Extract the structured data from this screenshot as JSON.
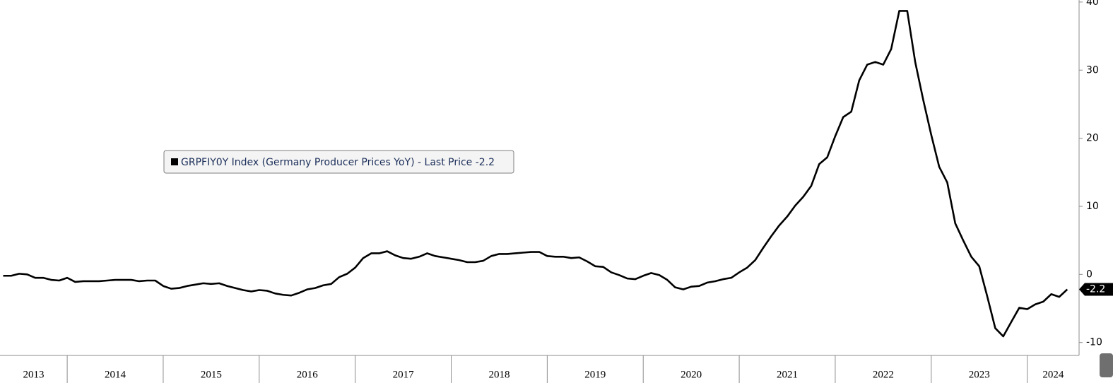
{
  "chart_data": {
    "type": "line",
    "x": [
      2013.333,
      2013.417,
      2013.5,
      2013.583,
      2013.667,
      2013.75,
      2013.833,
      2013.917,
      2014,
      2014.083,
      2014.167,
      2014.25,
      2014.333,
      2014.417,
      2014.5,
      2014.583,
      2014.667,
      2014.75,
      2014.833,
      2014.917,
      2015,
      2015.083,
      2015.167,
      2015.25,
      2015.333,
      2015.417,
      2015.5,
      2015.583,
      2015.667,
      2015.75,
      2015.833,
      2015.917,
      2016,
      2016.083,
      2016.167,
      2016.25,
      2016.333,
      2016.417,
      2016.5,
      2016.583,
      2016.667,
      2016.75,
      2016.833,
      2016.917,
      2017,
      2017.083,
      2017.167,
      2017.25,
      2017.333,
      2017.417,
      2017.5,
      2017.583,
      2017.667,
      2017.75,
      2017.833,
      2017.917,
      2018,
      2018.083,
      2018.167,
      2018.25,
      2018.333,
      2018.417,
      2018.5,
      2018.583,
      2018.667,
      2018.75,
      2018.833,
      2018.917,
      2019,
      2019.083,
      2019.167,
      2019.25,
      2019.333,
      2019.417,
      2019.5,
      2019.583,
      2019.667,
      2019.75,
      2019.833,
      2019.917,
      2020,
      2020.083,
      2020.167,
      2020.25,
      2020.333,
      2020.417,
      2020.5,
      2020.583,
      2020.667,
      2020.75,
      2020.833,
      2020.917,
      2021,
      2021.083,
      2021.167,
      2021.25,
      2021.333,
      2021.417,
      2021.5,
      2021.583,
      2021.667,
      2021.75,
      2021.833,
      2021.917,
      2022,
      2022.083,
      2022.167,
      2022.25,
      2022.333,
      2022.417,
      2022.5,
      2022.583,
      2022.667,
      2022.75,
      2022.833,
      2022.917,
      2023,
      2023.083,
      2023.167,
      2023.25,
      2023.333,
      2023.417,
      2023.5,
      2023.583,
      2023.667,
      2023.75,
      2023.833,
      2023.917,
      2024,
      2024.083,
      2024.167,
      2024.25,
      2024.333,
      2024.417
    ],
    "series": [
      {
        "name": "GRPFIY0Y Index (Germany Producer Prices YoY) - Last Price -2.2",
        "color": "#000000",
        "values": [
          -0.2,
          -0.2,
          0.1,
          0.0,
          -0.5,
          -0.5,
          -0.8,
          -0.9,
          -0.5,
          -1.1,
          -1.0,
          -1.0,
          -1.0,
          -0.9,
          -0.8,
          -0.8,
          -0.8,
          -1.0,
          -0.9,
          -0.9,
          -1.7,
          -2.1,
          -2.0,
          -1.7,
          -1.5,
          -1.3,
          -1.4,
          -1.3,
          -1.7,
          -2.0,
          -2.3,
          -2.5,
          -2.3,
          -2.4,
          -2.8,
          -3.0,
          -3.1,
          -2.7,
          -2.2,
          -2.0,
          -1.6,
          -1.4,
          -0.4,
          0.1,
          1.0,
          2.4,
          3.1,
          3.1,
          3.4,
          2.8,
          2.4,
          2.3,
          2.6,
          3.1,
          2.7,
          2.5,
          2.3,
          2.1,
          1.8,
          1.8,
          2.0,
          2.7,
          3.0,
          3.0,
          3.1,
          3.2,
          3.3,
          3.3,
          2.7,
          2.6,
          2.6,
          2.4,
          2.5,
          1.9,
          1.2,
          1.1,
          0.3,
          -0.1,
          -0.6,
          -0.7,
          -0.2,
          0.2,
          -0.1,
          -0.8,
          -1.9,
          -2.2,
          -1.8,
          -1.7,
          -1.2,
          -1.0,
          -0.7,
          -0.5,
          0.3,
          1.0,
          2.1,
          3.9,
          5.6,
          7.2,
          8.5,
          10.1,
          11.4,
          13.0,
          16.2,
          17.2,
          20.3,
          23.1,
          23.9,
          28.5,
          30.8,
          31.2,
          30.8,
          33.1,
          38.7,
          38.7,
          31.2,
          25.6,
          20.5,
          15.8,
          13.5,
          7.5,
          5.0,
          2.6,
          1.2,
          -3.2,
          -7.9,
          -9.1,
          -7.0,
          -4.9,
          -5.1,
          -4.4,
          -4.0,
          -2.9,
          -3.3,
          -2.2
        ]
      }
    ],
    "xlim": [
      2013.3,
      2024.54
    ],
    "xticks": [
      2013,
      2014,
      2015,
      2016,
      2017,
      2018,
      2019,
      2020,
      2021,
      2022,
      2023,
      2024
    ],
    "ylim": [
      -11.9,
      40.3
    ],
    "yticks": [
      -10,
      0,
      10,
      20,
      30,
      40
    ]
  }
}
